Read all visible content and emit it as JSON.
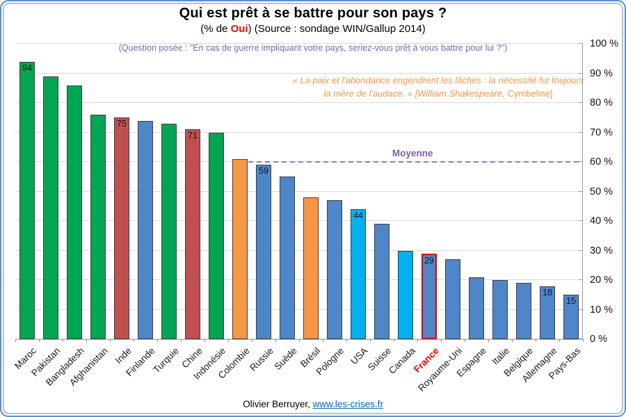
{
  "header": {
    "title": "Qui est prêt à se battre pour son pays ?",
    "subtitle_prefix": "(% de ",
    "subtitle_highlight": "Oui",
    "subtitle_suffix": ") (Source : sondage WIN/Gallup 2014)",
    "question": "(Question posée : \"En cas de guerre impliquant votre pays, seriez-vous prêt à vous battre pour lui ?\")"
  },
  "quote": {
    "text": "« La paix et l'abondance engendrent les lâches : la nécessité fut toujours la mère de l'audace. » [William Shakespeare, ",
    "work": "Cymbeline]"
  },
  "average_line": {
    "label": "Moyenne",
    "value": 60
  },
  "y_axis": {
    "min": 0,
    "max": 100,
    "step": 10,
    "tick_labels": [
      "0 %",
      "10 %",
      "20 %",
      "30 %",
      "40 %",
      "50 %",
      "60 %",
      "70 %",
      "80 %",
      "90 %",
      "100 %"
    ]
  },
  "footer": {
    "credit": "Olivier Berruyer, ",
    "link": "www.les-crises.fr"
  },
  "colors": {
    "green": "#00A651",
    "red": "#C0504D",
    "blue": "#4E86C8",
    "orange": "#F79646",
    "cyan": "#00B0F0",
    "bar_border": "#3F3F3F",
    "france_border": "#E00000",
    "france_label": "#FF0000",
    "average": "#8E7CC3",
    "average_label": "#7E5FA6",
    "question": "#7D66B0",
    "quote": "#F79646",
    "subtitle_highlight": "#FF0000",
    "link": "#0563C1"
  },
  "chart_data": {
    "type": "bar",
    "title": "Qui est prêt à se battre pour son pays ? (% de Oui)",
    "source": "sondage WIN/Gallup 2014",
    "xlabel": "",
    "ylabel": "% de Oui",
    "ylim": [
      0,
      100
    ],
    "grid": true,
    "average_line": 60,
    "categories": [
      "Maroc",
      "Pakistan",
      "Bangladesh",
      "Afghanistan",
      "Inde",
      "Finlande",
      "Turquie",
      "Chine",
      "Indonésie",
      "Colombie",
      "Russie",
      "Suède",
      "Brésil",
      "Pologne",
      "USA",
      "Suisse",
      "Canada",
      "France",
      "Royaume-Uni",
      "Espagne",
      "Italie",
      "Belgique",
      "Allemagne",
      "Pays-Bas"
    ],
    "values": [
      94,
      89,
      86,
      76,
      75,
      74,
      73,
      71,
      70,
      61,
      59,
      55,
      48,
      47,
      44,
      39,
      30,
      29,
      27,
      21,
      20,
      19,
      18,
      15
    ],
    "bars": [
      {
        "country": "Maroc",
        "value": 94,
        "color": "green",
        "show_label": true
      },
      {
        "country": "Pakistan",
        "value": 89,
        "color": "green",
        "show_label": false
      },
      {
        "country": "Bangladesh",
        "value": 86,
        "color": "green",
        "show_label": false
      },
      {
        "country": "Afghanistan",
        "value": 76,
        "color": "green",
        "show_label": false
      },
      {
        "country": "Inde",
        "value": 75,
        "color": "red",
        "show_label": true
      },
      {
        "country": "Finlande",
        "value": 74,
        "color": "blue",
        "show_label": false
      },
      {
        "country": "Turquie",
        "value": 73,
        "color": "green",
        "show_label": false
      },
      {
        "country": "Chine",
        "value": 71,
        "color": "red",
        "show_label": true
      },
      {
        "country": "Indonésie",
        "value": 70,
        "color": "green",
        "show_label": false
      },
      {
        "country": "Colombie",
        "value": 61,
        "color": "orange",
        "show_label": false
      },
      {
        "country": "Russie",
        "value": 59,
        "color": "blue",
        "show_label": true
      },
      {
        "country": "Suède",
        "value": 55,
        "color": "blue",
        "show_label": false
      },
      {
        "country": "Brésil",
        "value": 48,
        "color": "orange",
        "show_label": false
      },
      {
        "country": "Pologne",
        "value": 47,
        "color": "blue",
        "show_label": false
      },
      {
        "country": "USA",
        "value": 44,
        "color": "cyan",
        "show_label": true
      },
      {
        "country": "Suisse",
        "value": 39,
        "color": "blue",
        "show_label": false
      },
      {
        "country": "Canada",
        "value": 30,
        "color": "cyan",
        "show_label": false
      },
      {
        "country": "France",
        "value": 29,
        "color": "blue",
        "show_label": true,
        "highlight": true
      },
      {
        "country": "Royaume-Uni",
        "value": 27,
        "color": "blue",
        "show_label": false
      },
      {
        "country": "Espagne",
        "value": 21,
        "color": "blue",
        "show_label": false
      },
      {
        "country": "Italie",
        "value": 20,
        "color": "blue",
        "show_label": false
      },
      {
        "country": "Belgique",
        "value": 19,
        "color": "blue",
        "show_label": false
      },
      {
        "country": "Allemagne",
        "value": 18,
        "color": "blue",
        "show_label": true
      },
      {
        "country": "Pays-Bas",
        "value": 15,
        "color": "blue",
        "show_label": true
      }
    ]
  }
}
